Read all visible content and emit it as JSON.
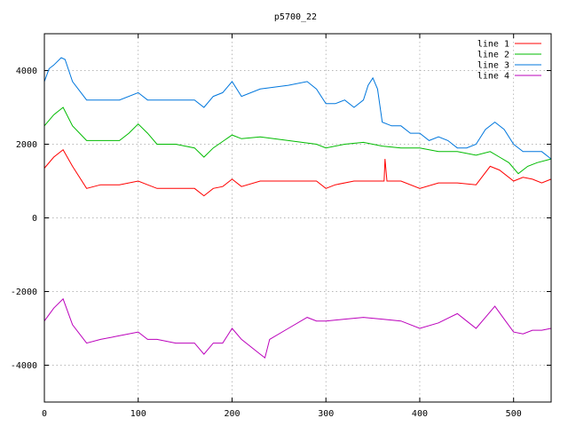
{
  "chart_data": {
    "type": "line",
    "title": "p5700_22",
    "xlabel": "",
    "ylabel": "",
    "xlim": [
      0,
      540
    ],
    "ylim": [
      -5000,
      5000
    ],
    "x_ticks": [
      0,
      100,
      200,
      300,
      400,
      500
    ],
    "y_ticks": [
      -4000,
      -2000,
      0,
      2000,
      4000
    ],
    "x_tick_labels": [
      "0",
      "100",
      "200",
      "300",
      "400",
      "500"
    ],
    "y_tick_labels": [
      "-4000",
      "-2000",
      "0",
      "2000",
      "4000"
    ],
    "grid": true,
    "legend_position": "top-right",
    "series": [
      {
        "name": "line 1",
        "color": "#ff0000",
        "x": [
          0,
          10,
          20,
          30,
          45,
          60,
          80,
          100,
          110,
          120,
          140,
          160,
          170,
          180,
          190,
          200,
          210,
          230,
          260,
          290,
          300,
          310,
          330,
          350,
          362,
          363,
          365,
          380,
          400,
          420,
          440,
          460,
          475,
          485,
          500,
          510,
          520,
          530,
          540
        ],
        "y": [
          1350,
          1650,
          1850,
          1400,
          800,
          900,
          900,
          1000,
          900,
          800,
          800,
          800,
          600,
          800,
          850,
          1050,
          850,
          1000,
          1000,
          1000,
          800,
          900,
          1000,
          1000,
          1000,
          1600,
          1000,
          1000,
          800,
          950,
          950,
          900,
          1400,
          1300,
          1000,
          1100,
          1050,
          950,
          1050
        ]
      },
      {
        "name": "line 2",
        "color": "#00bb00",
        "x": [
          0,
          10,
          20,
          30,
          45,
          60,
          80,
          90,
          100,
          110,
          120,
          140,
          160,
          170,
          180,
          200,
          210,
          230,
          260,
          290,
          300,
          320,
          340,
          360,
          380,
          400,
          420,
          440,
          460,
          475,
          485,
          495,
          505,
          515,
          525,
          540
        ],
        "y": [
          2500,
          2800,
          3000,
          2500,
          2100,
          2100,
          2100,
          2300,
          2550,
          2300,
          2000,
          2000,
          1900,
          1650,
          1900,
          2250,
          2150,
          2200,
          2100,
          2000,
          1900,
          2000,
          2050,
          1950,
          1900,
          1900,
          1800,
          1800,
          1700,
          1800,
          1650,
          1500,
          1200,
          1400,
          1500,
          1600
        ]
      },
      {
        "name": "line 3",
        "color": "#0077dd",
        "x": [
          0,
          5,
          10,
          18,
          22,
          30,
          45,
          60,
          80,
          100,
          110,
          120,
          140,
          160,
          170,
          180,
          190,
          200,
          210,
          230,
          260,
          280,
          290,
          300,
          310,
          320,
          330,
          340,
          345,
          350,
          355,
          360,
          370,
          380,
          390,
          400,
          410,
          420,
          430,
          440,
          450,
          460,
          470,
          480,
          490,
          500,
          510,
          520,
          530,
          540
        ],
        "y": [
          3700,
          4050,
          4150,
          4350,
          4300,
          3700,
          3200,
          3200,
          3200,
          3400,
          3200,
          3200,
          3200,
          3200,
          3000,
          3300,
          3400,
          3700,
          3300,
          3500,
          3600,
          3700,
          3500,
          3100,
          3100,
          3200,
          3000,
          3200,
          3600,
          3800,
          3500,
          2600,
          2500,
          2500,
          2300,
          2300,
          2100,
          2200,
          2100,
          1900,
          1900,
          2000,
          2400,
          2600,
          2400,
          2000,
          1800,
          1800,
          1800,
          1600
        ]
      },
      {
        "name": "line 4",
        "color": "#bb00bb",
        "x": [
          0,
          10,
          20,
          30,
          45,
          60,
          80,
          100,
          110,
          120,
          140,
          160,
          170,
          180,
          190,
          200,
          210,
          230,
          235,
          240,
          260,
          280,
          290,
          300,
          320,
          340,
          360,
          380,
          400,
          420,
          440,
          450,
          460,
          470,
          480,
          490,
          500,
          510,
          520,
          530,
          540
        ],
        "y": [
          -2800,
          -2450,
          -2200,
          -2900,
          -3400,
          -3300,
          -3200,
          -3100,
          -3300,
          -3300,
          -3400,
          -3400,
          -3700,
          -3400,
          -3400,
          -3000,
          -3300,
          -3700,
          -3800,
          -3300,
          -3000,
          -2700,
          -2800,
          -2800,
          -2750,
          -2700,
          -2750,
          -2800,
          -3000,
          -2850,
          -2600,
          -2800,
          -3000,
          -2700,
          -2400,
          -2750,
          -3100,
          -3150,
          -3050,
          -3050,
          -3000
        ]
      }
    ]
  }
}
